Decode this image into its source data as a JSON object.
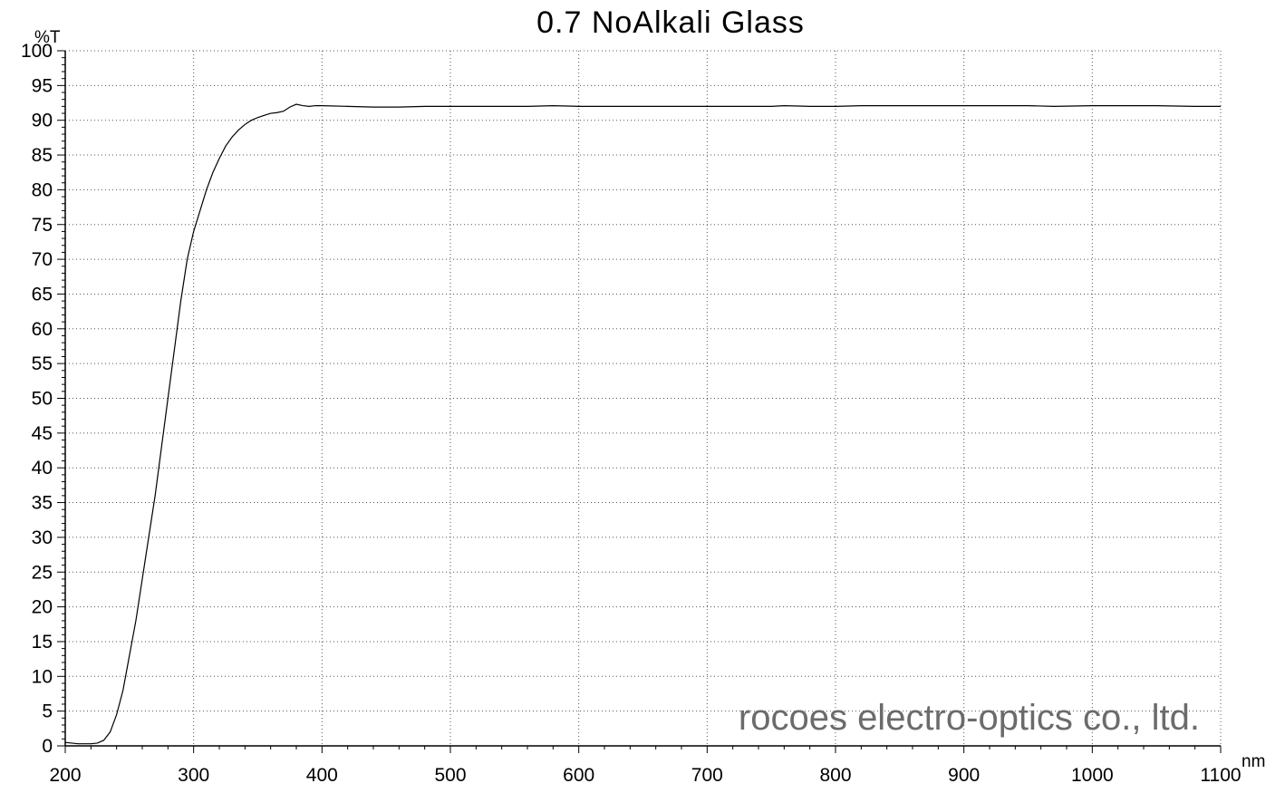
{
  "chart_data": {
    "type": "line",
    "title": "0.7 NoAlkali Glass",
    "xlabel": "nm",
    "ylabel": "%T",
    "xlim": [
      200,
      1100
    ],
    "ylim": [
      0,
      100
    ],
    "x_ticks": [
      200,
      300,
      400,
      500,
      600,
      700,
      800,
      900,
      1000,
      1100
    ],
    "y_ticks": [
      0,
      5,
      10,
      15,
      20,
      25,
      30,
      35,
      40,
      45,
      50,
      55,
      60,
      65,
      70,
      75,
      80,
      85,
      90,
      95,
      100
    ],
    "grid": true,
    "annotation": "rocoes electro-optics co., ltd.",
    "series": [
      {
        "color": "#000000",
        "x": [
          200,
          210,
          220,
          225,
          230,
          235,
          240,
          245,
          250,
          255,
          260,
          265,
          270,
          275,
          280,
          285,
          290,
          295,
          300,
          305,
          310,
          315,
          320,
          325,
          330,
          335,
          340,
          345,
          350,
          355,
          360,
          365,
          370,
          375,
          380,
          385,
          390,
          395,
          400,
          420,
          440,
          460,
          480,
          500,
          520,
          540,
          560,
          580,
          600,
          620,
          650,
          700,
          750,
          760,
          780,
          800,
          820,
          850,
          900,
          950,
          970,
          1000,
          1030,
          1050,
          1080,
          1100
        ],
        "y": [
          0.5,
          0.3,
          0.3,
          0.4,
          0.8,
          2.0,
          4.5,
          8,
          13,
          18,
          24,
          30,
          36,
          43,
          50,
          57,
          64,
          70,
          74,
          77,
          80,
          82.5,
          84.5,
          86.3,
          87.6,
          88.6,
          89.4,
          90.0,
          90.4,
          90.7,
          91.0,
          91.1,
          91.3,
          91.9,
          92.3,
          92.1,
          92.0,
          92.1,
          92.1,
          92.0,
          91.9,
          91.9,
          92.0,
          92.0,
          92.0,
          92.0,
          92.0,
          92.1,
          92.0,
          92.0,
          92.0,
          92.0,
          92.0,
          92.1,
          92.0,
          92.0,
          92.1,
          92.1,
          92.1,
          92.1,
          92.0,
          92.1,
          92.1,
          92.1,
          92.0,
          92.0
        ]
      }
    ]
  }
}
